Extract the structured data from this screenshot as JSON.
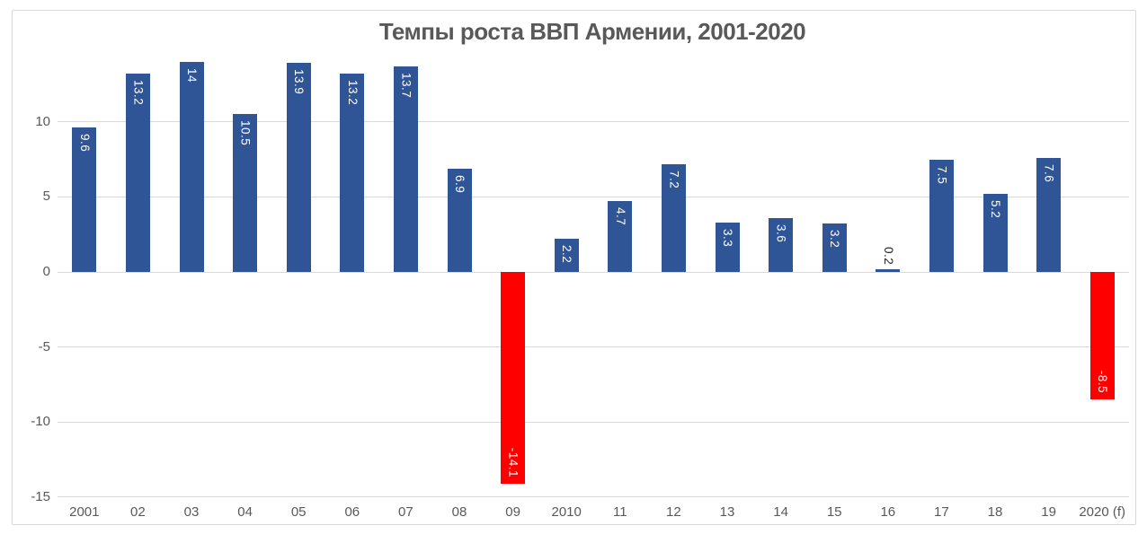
{
  "chart_data": {
    "type": "bar",
    "title": "Темпы роста ВВП Армении, 2001-2020",
    "categories": [
      "2001",
      "02",
      "03",
      "04",
      "05",
      "06",
      "07",
      "08",
      "09",
      "2010",
      "11",
      "12",
      "13",
      "14",
      "15",
      "16",
      "17",
      "18",
      "19",
      "2020 (f)"
    ],
    "values": [
      9.6,
      13.2,
      14,
      10.5,
      13.9,
      13.2,
      13.7,
      6.9,
      -14.1,
      2.2,
      4.7,
      7.2,
      3.3,
      3.6,
      3.2,
      0.2,
      7.5,
      5.2,
      7.6,
      -8.5
    ],
    "labels": [
      "9.6",
      "13.2",
      "14",
      "10.5",
      "13.9",
      "13.2",
      "13.7",
      "6.9",
      "-14.1",
      "2.2",
      "4.7",
      "7.2",
      "3.3",
      "3.6",
      "3.2",
      "0.2",
      "7.5",
      "5.2",
      "7.6",
      "-8.5"
    ],
    "y_ticks": [
      10,
      5,
      0,
      -5,
      -10,
      -15
    ],
    "ylim": [
      -15,
      14.6
    ],
    "grid": true,
    "legend": false,
    "xlabel": "",
    "ylabel": "",
    "colors": {
      "positive_bar": "#2F5597",
      "negative_bar": "#FF0000",
      "gridline": "#D9D9D9",
      "axis_text": "#595959",
      "title_text": "#595959",
      "label_inside": "#FFFFFF",
      "label_outside": "#262626",
      "frame_border": "#D7D7D7",
      "background": "#FFFFFF"
    }
  }
}
